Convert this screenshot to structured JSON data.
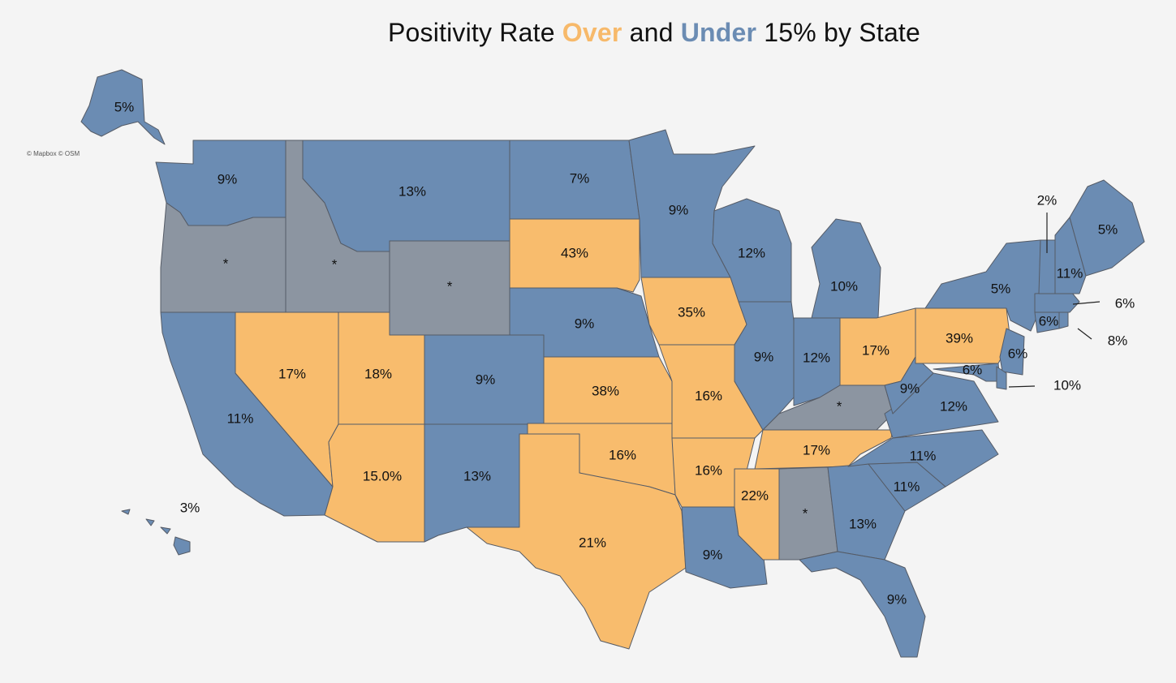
{
  "title": {
    "prefix": "Positivity Rate",
    "over": "Over",
    "mid": "and",
    "under": "Under",
    "suffix": "15% by State"
  },
  "credit": "© Mapbox © OSM",
  "colors": {
    "over": "#f8bc6d",
    "under": "#6b8cb3",
    "no_data": "#8c95a1"
  },
  "states": [
    {
      "id": "AK",
      "value": "5%",
      "status": "under"
    },
    {
      "id": "HI",
      "value": "3%",
      "status": "under"
    },
    {
      "id": "WA",
      "value": "9%",
      "status": "under"
    },
    {
      "id": "OR",
      "value": "*",
      "status": "no_data"
    },
    {
      "id": "CA",
      "value": "11%",
      "status": "under"
    },
    {
      "id": "ID",
      "value": "*",
      "status": "no_data"
    },
    {
      "id": "NV",
      "value": "17%",
      "status": "over"
    },
    {
      "id": "UT",
      "value": "18%",
      "status": "over"
    },
    {
      "id": "AZ",
      "value": "15.0%",
      "status": "over"
    },
    {
      "id": "MT",
      "value": "13%",
      "status": "under"
    },
    {
      "id": "WY",
      "value": "*",
      "status": "no_data"
    },
    {
      "id": "CO",
      "value": "9%",
      "status": "under"
    },
    {
      "id": "NM",
      "value": "13%",
      "status": "under"
    },
    {
      "id": "ND",
      "value": "7%",
      "status": "under"
    },
    {
      "id": "SD",
      "value": "43%",
      "status": "over"
    },
    {
      "id": "NE",
      "value": "9%",
      "status": "under"
    },
    {
      "id": "KS",
      "value": "38%",
      "status": "over"
    },
    {
      "id": "OK",
      "value": "16%",
      "status": "over"
    },
    {
      "id": "TX",
      "value": "21%",
      "status": "over"
    },
    {
      "id": "MN",
      "value": "9%",
      "status": "under"
    },
    {
      "id": "IA",
      "value": "35%",
      "status": "over"
    },
    {
      "id": "MO",
      "value": "16%",
      "status": "over"
    },
    {
      "id": "AR",
      "value": "16%",
      "status": "over"
    },
    {
      "id": "LA",
      "value": "9%",
      "status": "under"
    },
    {
      "id": "WI",
      "value": "12%",
      "status": "under"
    },
    {
      "id": "IL",
      "value": "9%",
      "status": "under"
    },
    {
      "id": "MI",
      "value": "10%",
      "status": "under"
    },
    {
      "id": "IN",
      "value": "12%",
      "status": "under"
    },
    {
      "id": "OH",
      "value": "17%",
      "status": "over"
    },
    {
      "id": "KY",
      "value": "*",
      "status": "no_data"
    },
    {
      "id": "TN",
      "value": "17%",
      "status": "over"
    },
    {
      "id": "MS",
      "value": "22%",
      "status": "over"
    },
    {
      "id": "AL",
      "value": "*",
      "status": "no_data"
    },
    {
      "id": "GA",
      "value": "13%",
      "status": "under"
    },
    {
      "id": "FL",
      "value": "9%",
      "status": "under"
    },
    {
      "id": "SC",
      "value": "11%",
      "status": "under"
    },
    {
      "id": "NC",
      "value": "11%",
      "status": "under"
    },
    {
      "id": "VA",
      "value": "12%",
      "status": "under"
    },
    {
      "id": "WV",
      "value": "9%",
      "status": "under"
    },
    {
      "id": "PA",
      "value": "39%",
      "status": "over"
    },
    {
      "id": "NY",
      "value": "5%",
      "status": "under"
    },
    {
      "id": "NJ",
      "value": "6%",
      "status": "under"
    },
    {
      "id": "MD",
      "value": "6%",
      "status": "under"
    },
    {
      "id": "DE",
      "value": "10%",
      "status": "under"
    },
    {
      "id": "CT",
      "value": "6%",
      "status": "under"
    },
    {
      "id": "RI",
      "value": "8%",
      "status": "under"
    },
    {
      "id": "MA",
      "value": "6%",
      "status": "under"
    },
    {
      "id": "VT",
      "value": "2%",
      "status": "under"
    },
    {
      "id": "NH",
      "value": "11%",
      "status": "under"
    },
    {
      "id": "ME",
      "value": "5%",
      "status": "under"
    }
  ]
}
